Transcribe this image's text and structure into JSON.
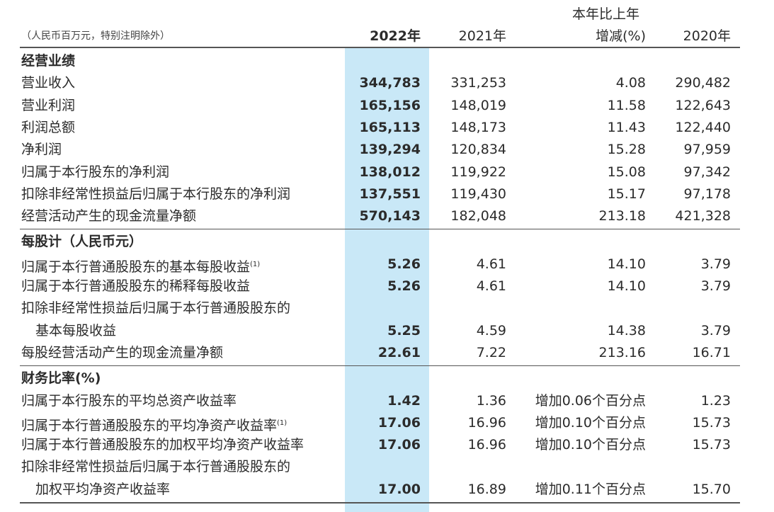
{
  "header": {
    "unit_note": "（人民币百万元，特别注明除外）",
    "col_2022": "2022年",
    "col_2021": "2021年",
    "col_change_line1": "本年比上年",
    "col_change_line2": "增减(%)",
    "col_2020": "2020年"
  },
  "sections": [
    {
      "title": "经营业绩",
      "rows": [
        {
          "label": "营业收入",
          "v2022": "344,783",
          "v2021": "331,253",
          "change": "4.08",
          "v2020": "290,482"
        },
        {
          "label": "营业利润",
          "v2022": "165,156",
          "v2021": "148,019",
          "change": "11.58",
          "v2020": "122,643"
        },
        {
          "label": "利润总额",
          "v2022": "165,113",
          "v2021": "148,173",
          "change": "11.43",
          "v2020": "122,440"
        },
        {
          "label": "净利润",
          "v2022": "139,294",
          "v2021": "120,834",
          "change": "15.28",
          "v2020": "97,959"
        },
        {
          "label": "归属于本行股东的净利润",
          "v2022": "138,012",
          "v2021": "119,922",
          "change": "15.08",
          "v2020": "97,342"
        },
        {
          "label": "扣除非经常性损益后归属于本行股东的净利润",
          "v2022": "137,551",
          "v2021": "119,430",
          "change": "15.17",
          "v2020": "97,178"
        },
        {
          "label": "经营活动产生的现金流量净额",
          "v2022": "570,143",
          "v2021": "182,048",
          "change": "213.18",
          "v2020": "421,328"
        }
      ]
    },
    {
      "title": "每股计（人民币元）",
      "rows": [
        {
          "label": "归属于本行普通股股东的基本每股收益",
          "note": "(1)",
          "v2022": "5.26",
          "v2021": "4.61",
          "change": "14.10",
          "v2020": "3.79"
        },
        {
          "label": "归属于本行普通股股东的稀释每股收益",
          "v2022": "5.26",
          "v2021": "4.61",
          "change": "14.10",
          "v2020": "3.79"
        },
        {
          "label": "扣除非经常性损益后归属于本行普通股股东的",
          "label2": "基本每股收益",
          "v2022": "5.25",
          "v2021": "4.59",
          "change": "14.38",
          "v2020": "3.79"
        },
        {
          "label": "每股经营活动产生的现金流量净额",
          "v2022": "22.61",
          "v2021": "7.22",
          "change": "213.16",
          "v2020": "16.71"
        }
      ]
    },
    {
      "title": "财务比率(%)",
      "rows": [
        {
          "label": "归属于本行股东的平均总资产收益率",
          "v2022": "1.42",
          "v2021": "1.36",
          "change": "增加0.06个百分点",
          "v2020": "1.23"
        },
        {
          "label": "归属于本行普通股股东的平均净资产收益率",
          "note": "(1)",
          "v2022": "17.06",
          "v2021": "16.96",
          "change": "增加0.10个百分点",
          "v2020": "15.73"
        },
        {
          "label": "归属于本行普通股股东的加权平均净资产收益率",
          "v2022": "17.06",
          "v2021": "16.96",
          "change": "增加0.10个百分点",
          "v2020": "15.73"
        },
        {
          "label": "扣除非经常性损益后归属于本行普通股股东的",
          "label2": "加权平均净资产收益率",
          "v2022": "17.00",
          "v2021": "16.89",
          "change": "增加0.11个百分点",
          "v2020": "15.70"
        }
      ]
    }
  ]
}
